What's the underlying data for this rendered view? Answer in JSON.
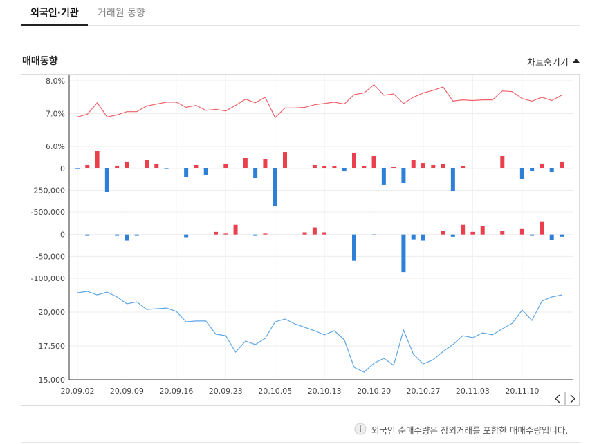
{
  "page": {
    "tabs": [
      "외국인·기관",
      "거래원 동향"
    ],
    "section_title": "매매동향",
    "toggle": "차트숨기기",
    "note": "외국인 순매수량은 장외거래를 포함한 매매수량입니다."
  },
  "chart_data": [
    {
      "type": "line",
      "color": "#f0616a",
      "ylim": [
        6,
        8
      ],
      "yticks": [
        {
          "value": 6,
          "label": "6.0%"
        },
        {
          "value": 7,
          "label": "7.0%"
        },
        {
          "value": 8,
          "label": "8.0%"
        }
      ],
      "grid": true,
      "values": [
        6.9,
        6.98,
        7.33,
        6.9,
        6.96,
        7.06,
        7.06,
        7.23,
        7.29,
        7.35,
        7.35,
        7.19,
        7.25,
        7.1,
        7.13,
        7.08,
        7.25,
        7.44,
        7.33,
        7.5,
        6.88,
        7.17,
        7.17,
        7.19,
        7.27,
        7.31,
        7.35,
        7.29,
        7.58,
        7.63,
        7.88,
        7.56,
        7.6,
        7.31,
        7.5,
        7.63,
        7.71,
        7.81,
        7.38,
        7.42,
        7.4,
        7.42,
        7.42,
        7.69,
        7.67,
        7.46,
        7.38,
        7.5,
        7.4,
        7.56
      ]
    },
    {
      "type": "bar",
      "color": "#ea3f4c",
      "negative_color": "#2d7fd8",
      "ylim": [
        -500000,
        250000
      ],
      "yticks": [
        {
          "value": -500000,
          "label": "-500,000"
        },
        {
          "value": -250000,
          "label": "-250,000"
        },
        0
      ],
      "grid": true,
      "values": [
        -5000,
        40000,
        206000,
        -270000,
        32000,
        80000,
        0,
        103000,
        48000,
        -5000,
        8000,
        -103000,
        40000,
        -71000,
        0,
        48000,
        5000,
        119000,
        -111000,
        111000,
        -437000,
        190000,
        0,
        5000,
        40000,
        24000,
        24000,
        -32000,
        183000,
        24000,
        143000,
        -190000,
        16000,
        -167000,
        103000,
        63000,
        40000,
        48000,
        -262000,
        24000,
        0,
        0,
        0,
        143000,
        0,
        -119000,
        -32000,
        56000,
        -40000,
        80000
      ]
    },
    {
      "type": "bar",
      "color": "#ea3f4c",
      "negative_color": "#2d7fd8",
      "ylim": [
        -100000,
        50000
      ],
      "yticks": [
        {
          "value": -100000,
          "label": "-100,000"
        },
        {
          "value": -50000,
          "label": "-50,000"
        },
        0
      ],
      "grid": true,
      "values": [
        0,
        -3000,
        0,
        0,
        -3000,
        -14000,
        -3000,
        0,
        0,
        0,
        0,
        -6000,
        0,
        0,
        6000,
        2000,
        22000,
        0,
        -3000,
        2000,
        0,
        0,
        0,
        5000,
        16000,
        5000,
        0,
        0,
        -60000,
        0,
        -2000,
        0,
        0,
        -86000,
        -11000,
        -14000,
        0,
        8000,
        -5000,
        22000,
        6000,
        19000,
        0,
        8000,
        0,
        14000,
        -3000,
        30000,
        -13000,
        -5000
      ]
    },
    {
      "type": "line",
      "color": "#5ea6e6",
      "ylim": [
        15000,
        22500
      ],
      "yticks": [
        {
          "value": 15000,
          "label": "15,000"
        },
        {
          "value": 17500,
          "label": "17,500"
        },
        {
          "value": 20000,
          "label": "20,000"
        }
      ],
      "grid": true,
      "categories": [
        "20.09.02",
        null,
        null,
        null,
        null,
        "20.09.09",
        null,
        null,
        null,
        null,
        "20.09.16",
        null,
        null,
        null,
        null,
        "20.09.23",
        null,
        null,
        null,
        null,
        "20.10.05",
        null,
        null,
        null,
        null,
        "20.10.13",
        null,
        null,
        null,
        null,
        "20.10.20",
        null,
        null,
        null,
        null,
        "20.10.27",
        null,
        null,
        null,
        null,
        "20.11.03",
        null,
        null,
        null,
        null,
        "20.11.10",
        null,
        null,
        null,
        null
      ],
      "values": [
        21430,
        21530,
        21270,
        21480,
        21120,
        20610,
        20760,
        20200,
        20250,
        20300,
        20050,
        19280,
        19340,
        19340,
        18370,
        18260,
        17040,
        17860,
        17600,
        18060,
        19280,
        19490,
        19130,
        18880,
        18620,
        18320,
        18620,
        17960,
        15920,
        15560,
        16220,
        16580,
        16070,
        18670,
        16890,
        16170,
        16480,
        17090,
        17600,
        18260,
        18110,
        18470,
        18320,
        18770,
        19180,
        20150,
        19390,
        20810,
        21120,
        21270
      ]
    }
  ]
}
